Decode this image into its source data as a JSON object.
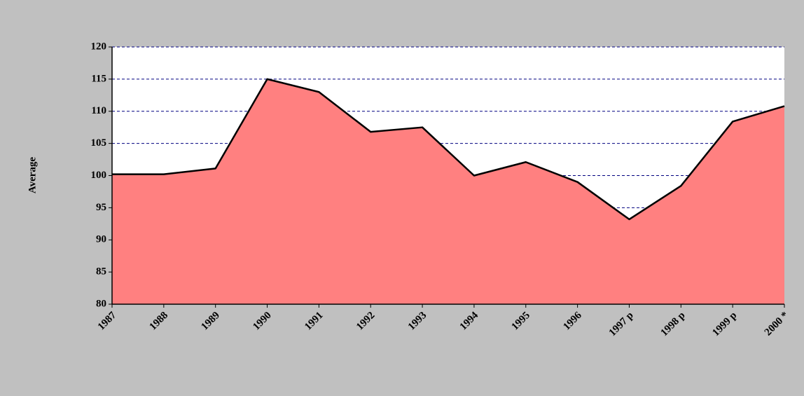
{
  "chart_data": {
    "type": "area",
    "y_label": "Average",
    "categories": [
      "1987",
      "1988",
      "1989",
      "1990",
      "1991",
      "1992",
      "1993",
      "1994",
      "1995",
      "1996",
      "1997 p",
      "1998 p",
      "1999 p",
      "2000 *"
    ],
    "values": [
      100.2,
      100.2,
      101.1,
      115,
      113,
      106.8,
      107.5,
      100,
      102.1,
      99,
      93.2,
      98.4,
      108.4,
      110.8
    ],
    "color": "#ff8080",
    "line_color": "#000000",
    "ylim": [
      80,
      120
    ],
    "yticks": [
      80,
      85,
      90,
      95,
      100,
      105,
      110,
      115,
      120
    ],
    "grid": true,
    "grid_color": "#000080"
  }
}
